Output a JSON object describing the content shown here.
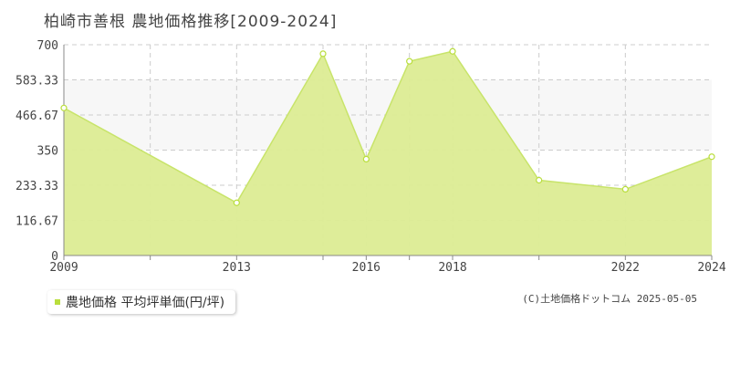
{
  "title": "柏崎市善根 農地価格推移[2009-2024]",
  "legend": {
    "label": "農地価格 平均坪単価(円/坪)"
  },
  "copyright": "(C)土地価格ドットコム 2025-05-05",
  "colors": {
    "area": "#dcec94",
    "line": "#c8e46a",
    "band": "#f7f7f7",
    "grid": "#cccccc",
    "marker": "#b9de3c"
  },
  "chart_data": {
    "type": "area",
    "x": [
      2009,
      2013,
      2015,
      2016,
      2017,
      2018,
      2020,
      2022,
      2024
    ],
    "series": [
      {
        "name": "農地価格 平均坪単価(円/坪)",
        "values": [
          490,
          175,
          670,
          320,
          645,
          678,
          250,
          220,
          328
        ]
      }
    ],
    "xlim": [
      2009,
      2024
    ],
    "ylim": [
      0,
      700
    ],
    "x_ticks": [
      2009,
      2011,
      2013,
      2015,
      2016,
      2017,
      2018,
      2020,
      2022,
      2024
    ],
    "x_tick_labels": [
      "2009",
      "",
      "2013",
      "",
      "2016",
      "",
      "2018",
      "",
      "2022",
      "2024"
    ],
    "y_ticks": [
      0,
      116.67,
      233.33,
      350,
      466.67,
      583.33,
      700
    ],
    "y_tick_labels": [
      "0",
      "116.67",
      "233.33",
      "350",
      "466.67",
      "583.33",
      "700"
    ],
    "shaded_band": [
      350,
      583.33
    ],
    "grid": true,
    "legend_position": "bottom-left"
  }
}
